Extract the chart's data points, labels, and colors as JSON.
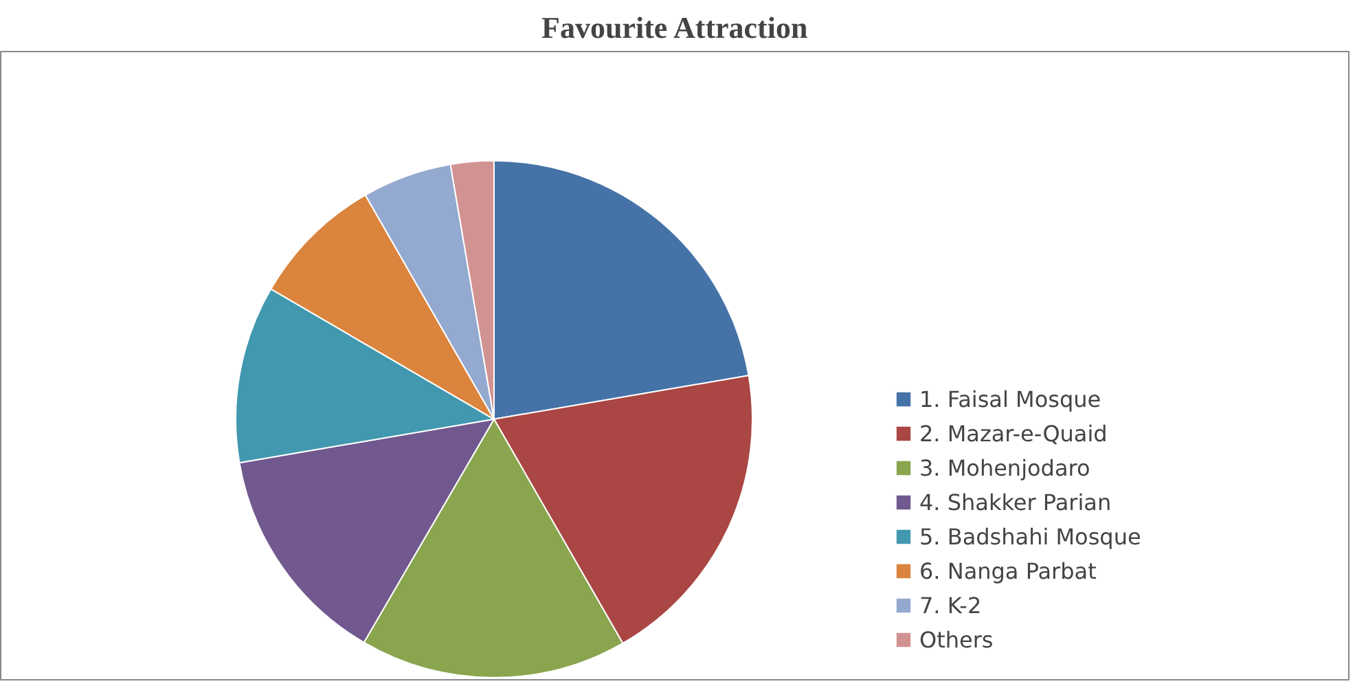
{
  "chart_data": {
    "type": "pie",
    "title": "Favourite Attraction",
    "categories": [
      "1. Faisal Mosque",
      "2. Mazar-e-Quaid",
      "3. Mohenjodaro",
      "4. Shakker Parian",
      "5. Badshahi Mosque",
      "6. Nanga Parbat",
      "7. K-2",
      "Others"
    ],
    "values": [
      22.3,
      19.4,
      16.7,
      13.9,
      11.1,
      8.3,
      5.6,
      2.7
    ],
    "colors": [
      "#4572a7",
      "#aa4643",
      "#89a54e",
      "#71588f",
      "#4198af",
      "#db843d",
      "#93a9cf",
      "#d19392"
    ],
    "legend": "right"
  }
}
